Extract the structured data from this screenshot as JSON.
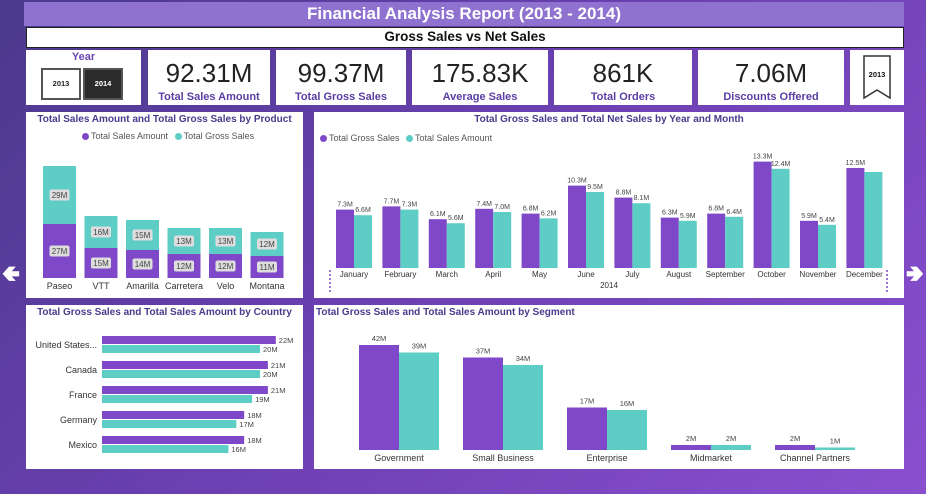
{
  "header": {
    "title": "Financial Analysis Report (2013 - 2014)",
    "subtitle": "Gross Sales vs Net Sales"
  },
  "year_slicer": {
    "label": "Year",
    "options": [
      "2013",
      "2014"
    ],
    "selected": "2014"
  },
  "kpis": [
    {
      "value": "92.31M",
      "label": "Total Sales Amount"
    },
    {
      "value": "99.37M",
      "label": "Total Gross Sales"
    },
    {
      "value": "175.83K",
      "label": "Average Sales"
    },
    {
      "value": "861K",
      "label": "Total Orders"
    },
    {
      "value": "7.06M",
      "label": "Discounts Offered"
    }
  ],
  "bookmark": {
    "label": "2013"
  },
  "colors": {
    "purple": "#7f48c9",
    "teal": "#5ecdc6"
  },
  "chart_data": [
    {
      "id": "product",
      "type": "bar",
      "stacked": true,
      "title": "Total Sales Amount and Total Gross Sales by Product",
      "legend": [
        "Total Sales Amount",
        "Total Gross Sales"
      ],
      "categories": [
        "Paseo",
        "VTT",
        "Amarilla",
        "Carretera",
        "Velo",
        "Montana"
      ],
      "series": [
        {
          "name": "Total Sales Amount",
          "values": [
            27,
            15,
            14,
            12,
            12,
            11
          ],
          "labels": [
            "27M",
            "15M",
            "14M",
            "12M",
            "12M",
            "11M"
          ]
        },
        {
          "name": "Total Gross Sales",
          "values": [
            29,
            16,
            15,
            13,
            13,
            12
          ],
          "labels": [
            "29M",
            "16M",
            "15M",
            "13M",
            "13M",
            "12M"
          ]
        }
      ]
    },
    {
      "id": "month",
      "type": "bar",
      "title": "Total Gross Sales and Total Net Sales by Year and Month",
      "legend": [
        "Total Gross Sales",
        "Total Sales Amount"
      ],
      "categories": [
        "January",
        "February",
        "March",
        "April",
        "May",
        "June",
        "July",
        "August",
        "September",
        "October",
        "November",
        "December"
      ],
      "year_label": "2014",
      "series": [
        {
          "name": "Total Gross Sales",
          "values": [
            7.3,
            7.7,
            6.1,
            7.4,
            6.8,
            10.3,
            8.8,
            6.3,
            6.8,
            13.3,
            5.9,
            12.5
          ],
          "labels": [
            "7.3M",
            "7.7M",
            "6.1M",
            "7.4M",
            "6.8M",
            "10.3M",
            "8.8M",
            "6.3M",
            "6.8M",
            "13.3M",
            "5.9M",
            "12.5M"
          ]
        },
        {
          "name": "Total Sales Amount",
          "values": [
            6.6,
            7.3,
            5.6,
            7.0,
            6.2,
            9.5,
            8.1,
            5.9,
            6.4,
            12.4,
            5.4,
            12.0
          ],
          "labels": [
            "6.6M",
            "7.3M",
            "5.6M",
            "7.0M",
            "6.2M",
            "9.5M",
            "8.1M",
            "5.9M",
            "6.4M",
            "12.4M",
            "5.4M",
            ""
          ]
        }
      ]
    },
    {
      "id": "country",
      "type": "bar",
      "orientation": "horizontal",
      "title": "Total Gross Sales and Total Sales Amount by Country",
      "categories": [
        "United States...",
        "Canada",
        "France",
        "Germany",
        "Mexico"
      ],
      "series": [
        {
          "name": "Total Gross Sales",
          "values": [
            22,
            21,
            21,
            18,
            18
          ],
          "labels": [
            "22M",
            "21M",
            "21M",
            "18M",
            "18M"
          ]
        },
        {
          "name": "Total Sales Amount",
          "values": [
            20,
            20,
            19,
            17,
            16
          ],
          "labels": [
            "20M",
            "20M",
            "19M",
            "17M",
            "16M"
          ]
        }
      ]
    },
    {
      "id": "segment",
      "type": "bar",
      "title": "Total Gross Sales and Total Sales Amount by Segment",
      "categories": [
        "Government",
        "Small Business",
        "Enterprise",
        "Midmarket",
        "Channel Partners"
      ],
      "series": [
        {
          "name": "Total Gross Sales",
          "values": [
            42,
            37,
            17,
            2,
            2
          ],
          "labels": [
            "42M",
            "37M",
            "17M",
            "2M",
            "2M"
          ]
        },
        {
          "name": "Total Sales Amount",
          "values": [
            39,
            34,
            16,
            2,
            1
          ],
          "labels": [
            "39M",
            "34M",
            "16M",
            "2M",
            "1M"
          ]
        }
      ]
    }
  ]
}
